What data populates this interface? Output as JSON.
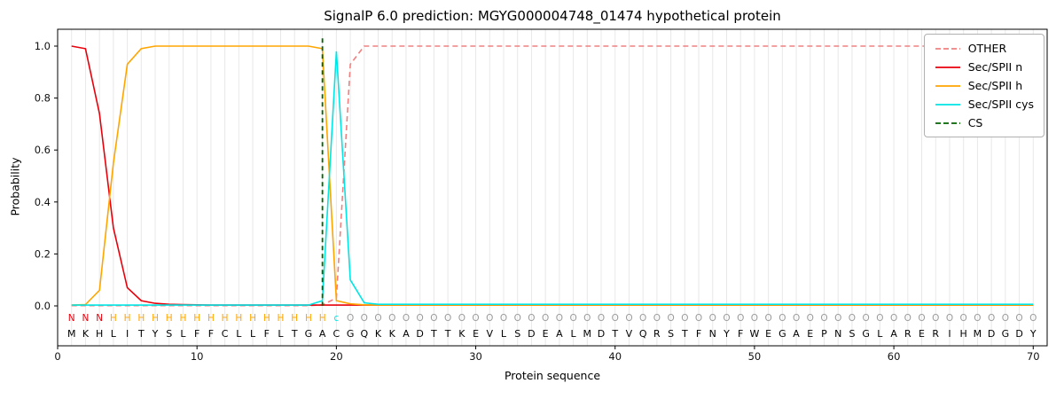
{
  "chart_data": {
    "type": "line",
    "title": "SignalP 6.0 prediction: MGYG000004748_01474 hypothetical protein",
    "xlabel": "Protein sequence",
    "ylabel": "Probability",
    "xlim": [
      0,
      71
    ],
    "ylim": [
      0,
      1
    ],
    "xticks": [
      0,
      10,
      20,
      30,
      40,
      50,
      60,
      70
    ],
    "yticks": [
      0.0,
      0.2,
      0.4,
      0.6,
      0.8,
      1.0
    ],
    "grid": "vertical-per-residue",
    "legend_position": "upper-right",
    "sequence": "MKHLITYSLFFCLLFLTGACGQKKADTTKEVLSDEALMDTVQRSTFNYFWEGAEPNSGLARERIHMDGDY",
    "annotation": "NNNHHHHHHHHHHHHHHHHcOOOOOOOOOOOOOOOOOOOOOOOOOOOOOOOOOOOOOOOOOOOOOOOOOO",
    "annotation_colors": {
      "N": "#e8000b",
      "H": "#ffa500",
      "c": "#00e5e5",
      "O": "#9b9b9b"
    },
    "series": [
      {
        "name": "OTHER",
        "color": "#f08080",
        "dash": true,
        "values": [
          0.001,
          0.001,
          0.001,
          0.001,
          0.001,
          0.001,
          0.001,
          0.001,
          0.001,
          0.001,
          0.001,
          0.001,
          0.001,
          0.001,
          0.001,
          0.001,
          0.001,
          0.001,
          0.004,
          0.03,
          0.93,
          1.0,
          1.0,
          1.0,
          1.0,
          1.0,
          1.0,
          1.0,
          1.0,
          1.0,
          1.0,
          1.0,
          1.0,
          1.0,
          1.0,
          1.0,
          1.0,
          1.0,
          1.0,
          1.0,
          1.0,
          1.0,
          1.0,
          1.0,
          1.0,
          1.0,
          1.0,
          1.0,
          1.0,
          1.0,
          1.0,
          1.0,
          1.0,
          1.0,
          1.0,
          1.0,
          1.0,
          1.0,
          1.0,
          1.0,
          1.0,
          1.0,
          1.0,
          1.0,
          1.0,
          1.0,
          1.0,
          1.0,
          1.0,
          1.0
        ]
      },
      {
        "name": "Sec/SPII n",
        "color": "#e8000b",
        "dash": false,
        "values": [
          1.0,
          0.99,
          0.74,
          0.3,
          0.07,
          0.02,
          0.01,
          0.006,
          0.005,
          0.004,
          0.003,
          0.003,
          0.003,
          0.003,
          0.003,
          0.003,
          0.003,
          0.003,
          0.003,
          0.003,
          0.003,
          0.003,
          0.003,
          0.003,
          0.003,
          0.003,
          0.003,
          0.003,
          0.003,
          0.003,
          0.003,
          0.003,
          0.003,
          0.003,
          0.003,
          0.003,
          0.003,
          0.003,
          0.003,
          0.003,
          0.003,
          0.003,
          0.003,
          0.003,
          0.003,
          0.003,
          0.003,
          0.003,
          0.003,
          0.003,
          0.003,
          0.003,
          0.003,
          0.003,
          0.003,
          0.003,
          0.003,
          0.003,
          0.003,
          0.003,
          0.003,
          0.003,
          0.003,
          0.003,
          0.003,
          0.003,
          0.003,
          0.003,
          0.003,
          0.003
        ]
      },
      {
        "name": "Sec/SPII h",
        "color": "#ffa500",
        "dash": false,
        "values": [
          0.003,
          0.005,
          0.06,
          0.55,
          0.93,
          0.99,
          1.0,
          1.0,
          1.0,
          1.0,
          1.0,
          1.0,
          1.0,
          1.0,
          1.0,
          1.0,
          1.0,
          1.0,
          0.99,
          0.02,
          0.008,
          0.004,
          0.003,
          0.003,
          0.003,
          0.003,
          0.003,
          0.003,
          0.003,
          0.003,
          0.003,
          0.003,
          0.003,
          0.003,
          0.003,
          0.003,
          0.003,
          0.003,
          0.003,
          0.003,
          0.003,
          0.003,
          0.003,
          0.003,
          0.003,
          0.003,
          0.003,
          0.003,
          0.003,
          0.003,
          0.003,
          0.003,
          0.003,
          0.003,
          0.003,
          0.003,
          0.003,
          0.003,
          0.003,
          0.003,
          0.003,
          0.003,
          0.003,
          0.003,
          0.003,
          0.003,
          0.003,
          0.003,
          0.003,
          0.003
        ]
      },
      {
        "name": "Sec/SPII cys",
        "color": "#00e5e5",
        "dash": false,
        "values": [
          0.003,
          0.003,
          0.003,
          0.003,
          0.003,
          0.003,
          0.003,
          0.003,
          0.003,
          0.003,
          0.003,
          0.003,
          0.003,
          0.003,
          0.003,
          0.003,
          0.003,
          0.003,
          0.02,
          0.98,
          0.1,
          0.012,
          0.006,
          0.006,
          0.006,
          0.006,
          0.006,
          0.006,
          0.006,
          0.006,
          0.006,
          0.006,
          0.006,
          0.006,
          0.006,
          0.006,
          0.006,
          0.006,
          0.006,
          0.006,
          0.006,
          0.006,
          0.006,
          0.006,
          0.006,
          0.006,
          0.006,
          0.006,
          0.006,
          0.006,
          0.006,
          0.006,
          0.006,
          0.006,
          0.006,
          0.006,
          0.006,
          0.006,
          0.006,
          0.006,
          0.006,
          0.006,
          0.006,
          0.006,
          0.006,
          0.006,
          0.006,
          0.006,
          0.006,
          0.006
        ]
      }
    ],
    "cs": {
      "label": "CS",
      "color": "#006400",
      "dash": true,
      "position": 19
    }
  }
}
